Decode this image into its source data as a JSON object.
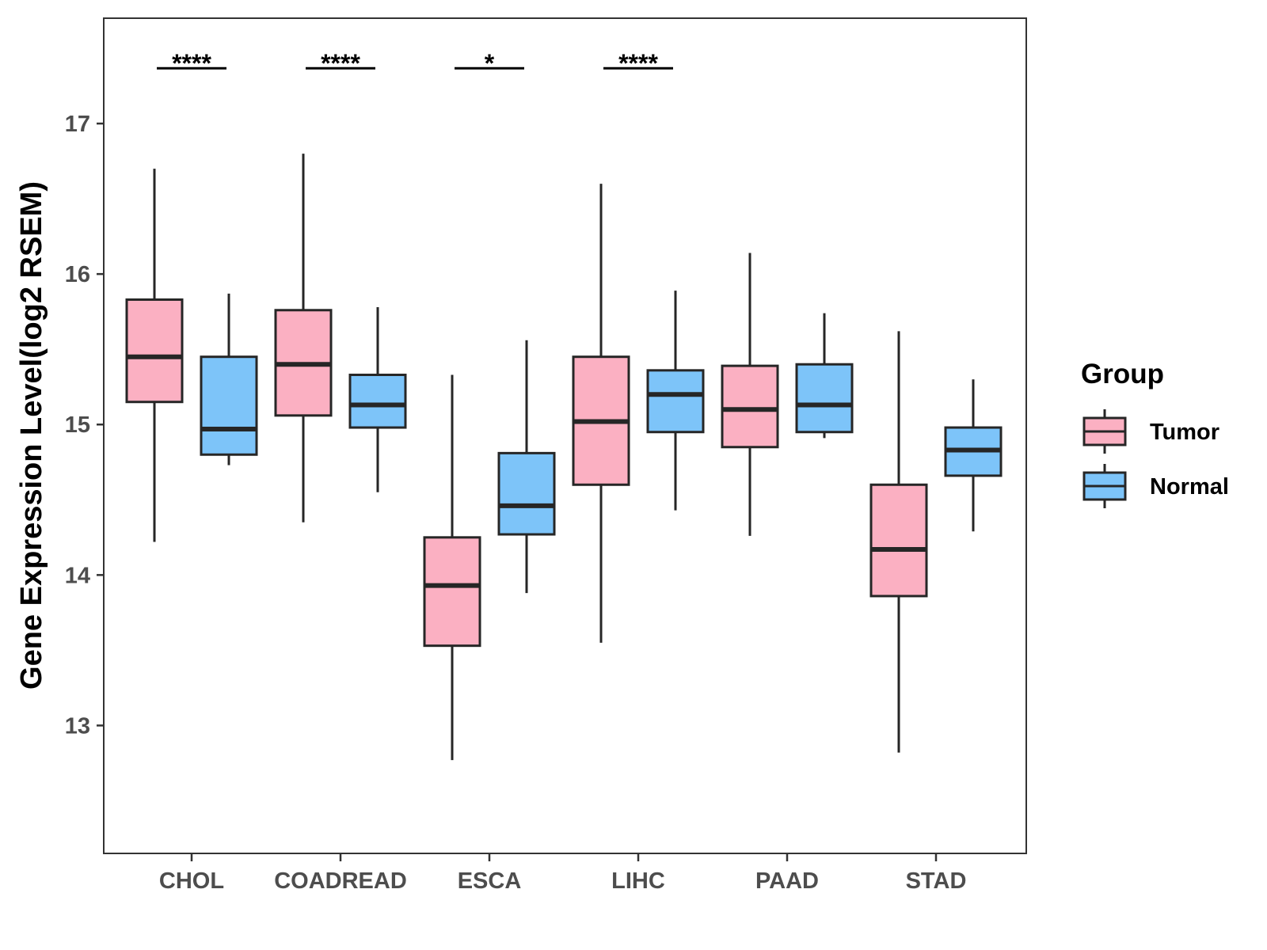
{
  "chart_data": {
    "type": "boxplot",
    "title": "",
    "xlabel": "",
    "ylabel": "Gene Expression Level(log2 RSEM)",
    "ylim": [
      12.15,
      17.7
    ],
    "yticks": [
      13,
      14,
      15,
      16,
      17
    ],
    "categories": [
      "CHOL",
      "COADREAD",
      "ESCA",
      "LIHC",
      "PAAD",
      "STAD"
    ],
    "legend": {
      "title": "Group",
      "position": "right",
      "entries": [
        "Tumor",
        "Normal"
      ]
    },
    "colors": {
      "Tumor": "#FBB0C2",
      "Normal": "#7DC4F9",
      "stroke": "#262626"
    },
    "series": [
      {
        "name": "Tumor",
        "boxes": [
          {
            "category": "CHOL",
            "min": 14.22,
            "q1": 15.15,
            "median": 15.45,
            "q3": 15.83,
            "max": 16.7
          },
          {
            "category": "COADREAD",
            "min": 14.35,
            "q1": 15.06,
            "median": 15.4,
            "q3": 15.76,
            "max": 16.8
          },
          {
            "category": "ESCA",
            "min": 12.77,
            "q1": 13.53,
            "median": 13.93,
            "q3": 14.25,
            "max": 15.33
          },
          {
            "category": "LIHC",
            "min": 13.55,
            "q1": 14.6,
            "median": 15.02,
            "q3": 15.45,
            "max": 16.6
          },
          {
            "category": "PAAD",
            "min": 14.26,
            "q1": 14.85,
            "median": 15.1,
            "q3": 15.39,
            "max": 16.14
          },
          {
            "category": "STAD",
            "min": 12.82,
            "q1": 13.86,
            "median": 14.17,
            "q3": 14.6,
            "max": 15.62
          }
        ]
      },
      {
        "name": "Normal",
        "boxes": [
          {
            "category": "CHOL",
            "min": 14.73,
            "q1": 14.8,
            "median": 14.97,
            "q3": 15.45,
            "max": 15.87
          },
          {
            "category": "COADREAD",
            "min": 14.55,
            "q1": 14.98,
            "median": 15.13,
            "q3": 15.33,
            "max": 15.78
          },
          {
            "category": "ESCA",
            "min": 13.88,
            "q1": 14.27,
            "median": 14.46,
            "q3": 14.81,
            "max": 15.56
          },
          {
            "category": "LIHC",
            "min": 14.43,
            "q1": 14.95,
            "median": 15.2,
            "q3": 15.36,
            "max": 15.89
          },
          {
            "category": "PAAD",
            "min": 14.91,
            "q1": 14.95,
            "median": 15.13,
            "q3": 15.4,
            "max": 15.74
          },
          {
            "category": "STAD",
            "min": 14.29,
            "q1": 14.66,
            "median": 14.83,
            "q3": 14.98,
            "max": 15.3
          }
        ]
      }
    ],
    "significance": [
      {
        "category": "CHOL",
        "label": "****"
      },
      {
        "category": "COADREAD",
        "label": "****"
      },
      {
        "category": "ESCA",
        "label": "*"
      },
      {
        "category": "LIHC",
        "label": "****"
      },
      {
        "category": "PAAD",
        "label": ""
      },
      {
        "category": "STAD",
        "label": ""
      }
    ],
    "significance_y": 17.42
  }
}
